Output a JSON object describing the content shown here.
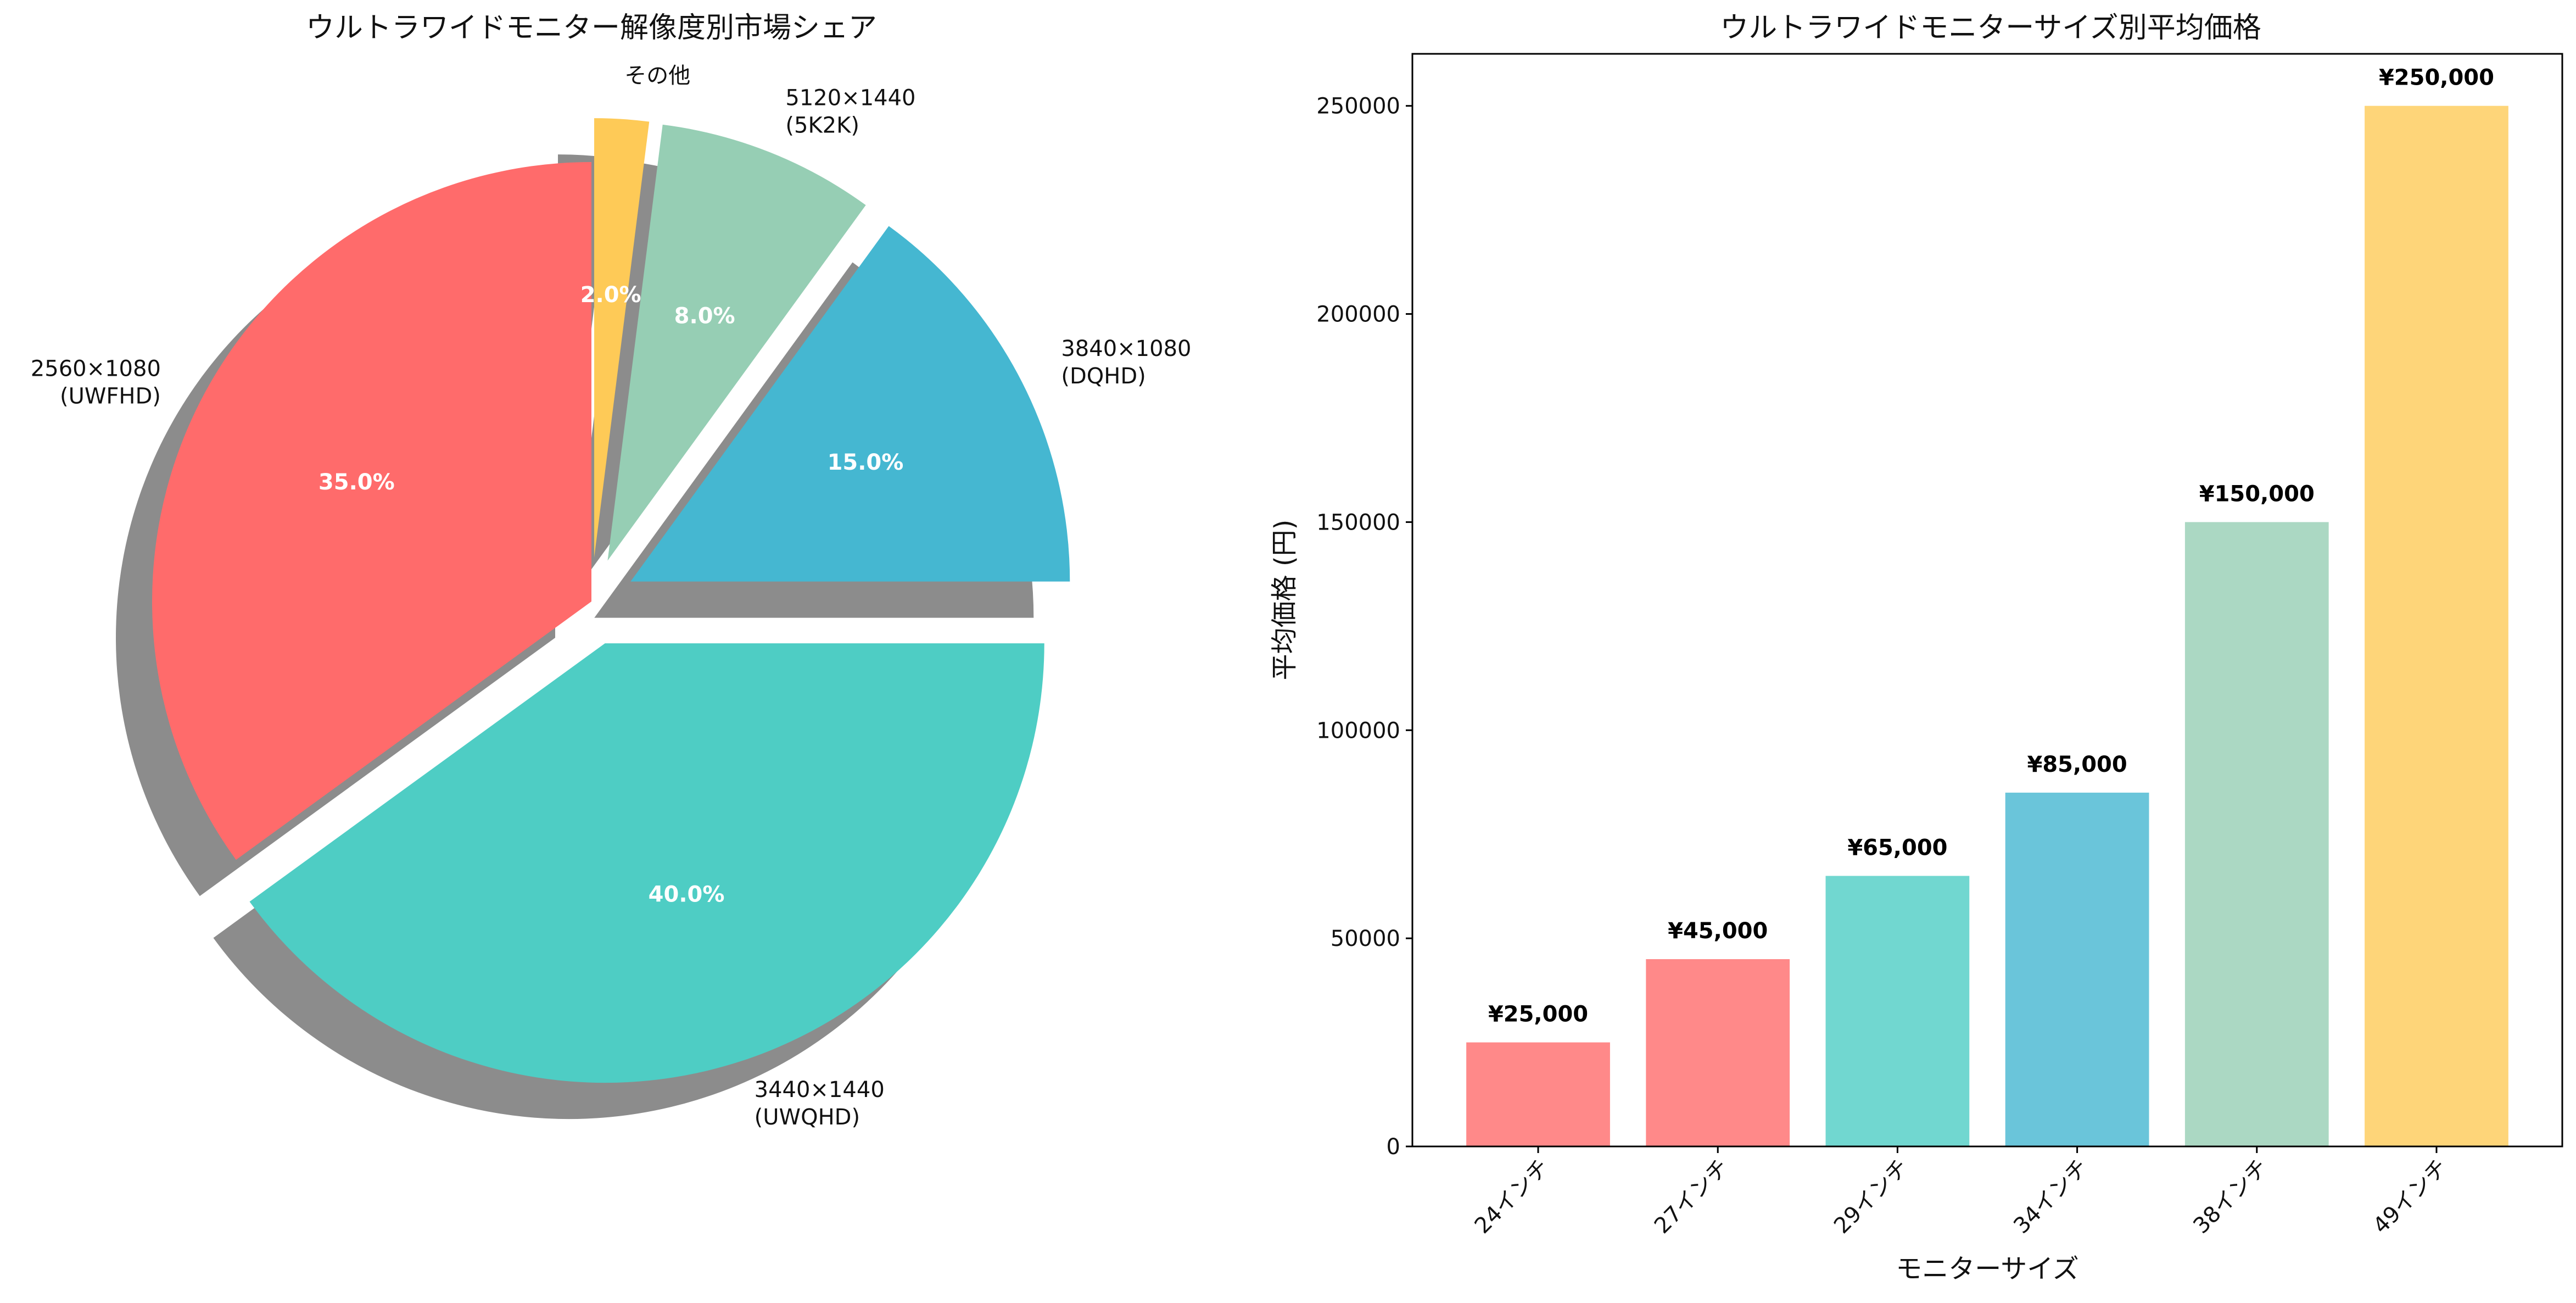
{
  "chart_data": [
    {
      "type": "pie",
      "title": "ウルトラワイドモニター解像度別市場シェア",
      "slices": [
        {
          "label": "3840×1080\n(DQHD)",
          "value": 15.0,
          "pct_label": "15.0%",
          "color": "#45B7D1",
          "explode": true
        },
        {
          "label": "5120×1440\n(5K2K)",
          "value": 8.0,
          "pct_label": "8.0%",
          "color": "#96CEB4",
          "explode": true
        },
        {
          "label": "その他",
          "value": 2.0,
          "pct_label": "2.0%",
          "color": "#FECA57",
          "explode": true
        },
        {
          "label": "2560×1080\n(UWFHD)",
          "value": 35.0,
          "pct_label": "35.0%",
          "color": "#FF6B6B",
          "explode": false
        },
        {
          "label": "3440×1440\n(UWQHD)",
          "value": 40.0,
          "pct_label": "40.0%",
          "color": "#4ECDC4",
          "explode": true
        }
      ],
      "start_angle_deg": 0,
      "shadow": true
    },
    {
      "type": "bar",
      "title": "ウルトラワイドモニターサイズ別平均価格",
      "xlabel": "モニターサイズ",
      "ylabel": "平均価格 (円)",
      "categories": [
        "24インチ",
        "27インチ",
        "29インチ",
        "34インチ",
        "38インチ",
        "49インチ"
      ],
      "values": [
        25000,
        45000,
        65000,
        85000,
        150000,
        250000
      ],
      "value_labels": [
        "¥25,000",
        "¥45,000",
        "¥65,000",
        "¥85,000",
        "¥150,000",
        "¥250,000"
      ],
      "colors": [
        "#FF6B6B",
        "#FF6B6B",
        "#4ECDC4",
        "#45B7D1",
        "#96CEB4",
        "#FECA57"
      ],
      "ylim": [
        0,
        262500
      ],
      "yticks": [
        0,
        50000,
        100000,
        150000,
        200000,
        250000
      ],
      "ytick_labels": [
        "0",
        "50000",
        "100000",
        "150000",
        "200000",
        "250000"
      ]
    }
  ]
}
